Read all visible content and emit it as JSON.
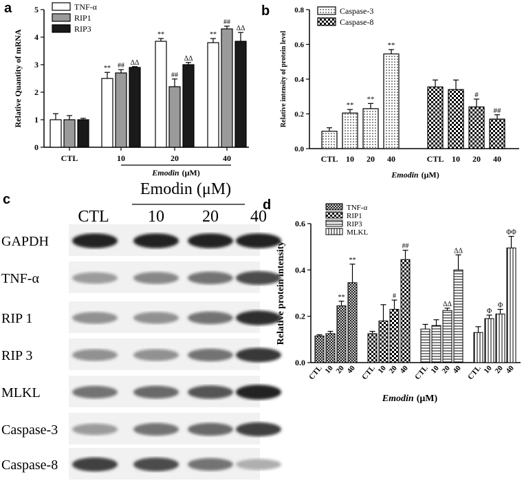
{
  "colors": {
    "ink": "#000000",
    "rip1": "#9a9a9a",
    "rip3": "#1a1a1a",
    "white": "#ffffff"
  },
  "panels": {
    "a": "a",
    "b": "b",
    "c": "c",
    "d": "d"
  },
  "chart_data": [
    {
      "type": "bar",
      "title": "",
      "ylabel": "Relative Quantity of mRNA",
      "xlabel_em": "Emodin",
      "xlabel_unit": "(μM)",
      "ylim": [
        0,
        5
      ],
      "yticks": [
        "0",
        "1",
        "2",
        "3",
        "4",
        "5"
      ],
      "categories": [
        "CTL",
        "10",
        "20",
        "40"
      ],
      "series": [
        {
          "name": "TNF-α",
          "fill": "white",
          "values": [
            1.0,
            2.5,
            3.85,
            3.8
          ],
          "errors": [
            0.22,
            0.22,
            0.1,
            0.15
          ],
          "marks": [
            "",
            "**",
            "**",
            "**"
          ]
        },
        {
          "name": "RIP1",
          "fill": "gray",
          "values": [
            1.0,
            2.7,
            2.2,
            4.3
          ],
          "errors": [
            0.15,
            0.12,
            0.28,
            0.1
          ],
          "marks": [
            "",
            "##",
            "##",
            "##"
          ]
        },
        {
          "name": "RIP3",
          "fill": "black",
          "values": [
            1.0,
            2.9,
            3.0,
            3.85
          ],
          "errors": [
            0.05,
            0.03,
            0.08,
            0.32
          ],
          "marks": [
            "",
            "ΔΔ",
            "ΔΔ",
            "ΔΔ"
          ]
        }
      ]
    },
    {
      "type": "bar",
      "title": "",
      "ylabel": "Relative intensity of protein level",
      "xlabel_em": "Emodin",
      "xlabel_unit": "(μM)",
      "ylim": [
        0,
        0.8
      ],
      "yticks": [
        "0.0",
        "0.2",
        "0.4",
        "0.6",
        "0.8"
      ],
      "categories": [
        "CTL",
        "10",
        "20",
        "40"
      ],
      "series": [
        {
          "name": "Caspase-3",
          "fill": "dots",
          "values": [
            0.1,
            0.205,
            0.23,
            0.545
          ],
          "errors": [
            0.02,
            0.02,
            0.03,
            0.025
          ],
          "marks": [
            "",
            "**",
            "**",
            "**"
          ]
        },
        {
          "name": "Caspase-8",
          "fill": "checker",
          "values": [
            0.355,
            0.34,
            0.24,
            0.17
          ],
          "errors": [
            0.04,
            0.055,
            0.045,
            0.025
          ],
          "marks": [
            "",
            "",
            "#",
            "##"
          ]
        }
      ]
    },
    {
      "type": "bar",
      "title": "",
      "ylabel": "Relative protein intensity",
      "xlabel_em": "Emodin",
      "xlabel_unit": "(μM)",
      "ylim": [
        0,
        0.6
      ],
      "yticks": [
        "0.0",
        "0.2",
        "0.4",
        "0.6"
      ],
      "categories": [
        "CTL",
        "10",
        "20",
        "40"
      ],
      "series": [
        {
          "name": "TNF-α",
          "fill": "cross",
          "values": [
            0.115,
            0.125,
            0.245,
            0.345
          ],
          "errors": [
            0.005,
            0.01,
            0.02,
            0.08
          ],
          "marks": [
            "",
            "",
            "**",
            "**"
          ]
        },
        {
          "name": "RIP1",
          "fill": "checker",
          "values": [
            0.125,
            0.18,
            0.23,
            0.445
          ],
          "errors": [
            0.01,
            0.07,
            0.04,
            0.04
          ],
          "marks": [
            "",
            "",
            "#",
            "##"
          ]
        },
        {
          "name": "RIP3",
          "fill": "hstripe",
          "values": [
            0.145,
            0.16,
            0.225,
            0.4
          ],
          "errors": [
            0.02,
            0.025,
            0.01,
            0.065
          ],
          "marks": [
            "",
            "",
            "ΔΔ",
            "ΔΔ"
          ]
        },
        {
          "name": "MLKL",
          "fill": "vstripe",
          "values": [
            0.13,
            0.19,
            0.21,
            0.495
          ],
          "errors": [
            0.025,
            0.015,
            0.02,
            0.05
          ],
          "marks": [
            "",
            "Φ",
            "Φ",
            "ΦΦ"
          ]
        }
      ]
    }
  ],
  "blot": {
    "header_em": "Emodin",
    "header_unit": "(μM)",
    "lanes": [
      "CTL",
      "10",
      "20",
      "40"
    ],
    "rows": [
      {
        "label": "GAPDH",
        "intensity": [
          0.95,
          0.95,
          0.95,
          0.95
        ]
      },
      {
        "label": "TNF-α",
        "intensity": [
          0.35,
          0.45,
          0.55,
          0.75
        ]
      },
      {
        "label": "RIP 1",
        "intensity": [
          0.4,
          0.4,
          0.55,
          0.9
        ]
      },
      {
        "label": "RIP 3",
        "intensity": [
          0.4,
          0.4,
          0.55,
          0.85
        ]
      },
      {
        "label": "MLKL",
        "intensity": [
          0.55,
          0.6,
          0.7,
          0.95
        ]
      },
      {
        "label": "Caspase-3",
        "intensity": [
          0.35,
          0.55,
          0.6,
          0.8
        ]
      },
      {
        "label": "Caspase-8",
        "intensity": [
          0.8,
          0.75,
          0.55,
          0.25
        ]
      }
    ]
  }
}
